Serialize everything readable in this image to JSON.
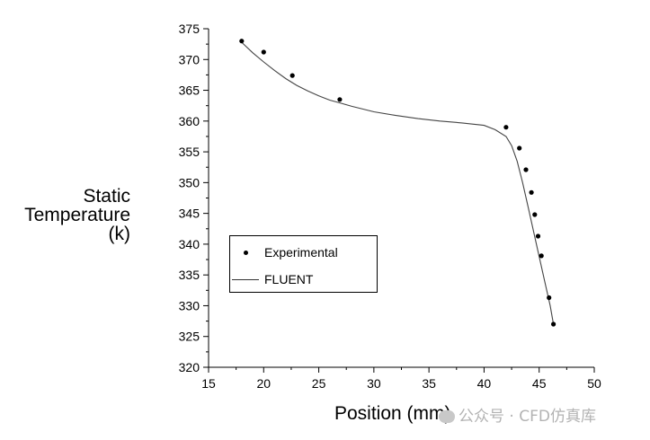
{
  "chart_data": {
    "type": "scatter",
    "xlabel": "Position (mm)",
    "ylabel_lines": [
      "Static",
      "Temperature",
      "(k)"
    ],
    "xlim": [
      15,
      50
    ],
    "ylim": [
      320,
      375
    ],
    "xticks": [
      15,
      20,
      25,
      30,
      35,
      40,
      45,
      50
    ],
    "yticks": [
      320,
      325,
      330,
      335,
      340,
      345,
      350,
      355,
      360,
      365,
      370,
      375
    ],
    "grid": false,
    "legend_position": "lower-left",
    "series": [
      {
        "name": "Experimental",
        "kind": "points",
        "color": "#000000",
        "x": [
          18.0,
          20.0,
          22.6,
          26.9,
          42.0,
          43.2,
          43.8,
          44.3,
          44.6,
          44.9,
          45.2,
          45.9,
          46.3
        ],
        "y": [
          373.0,
          371.2,
          367.4,
          363.5,
          359.0,
          355.6,
          352.1,
          348.4,
          344.8,
          341.3,
          338.1,
          331.3,
          327.0
        ]
      },
      {
        "name": "FLUENT",
        "kind": "line",
        "color": "#444444",
        "x": [
          18.0,
          19.0,
          20.0,
          21.0,
          22.0,
          23.0,
          24.0,
          25.0,
          26.0,
          27.0,
          28.0,
          30.0,
          32.0,
          34.0,
          36.0,
          38.0,
          40.0,
          41.0,
          42.0,
          42.5,
          43.0,
          43.5,
          44.0,
          44.5,
          45.0,
          45.5,
          46.0,
          46.3
        ],
        "y": [
          372.8,
          371.1,
          369.6,
          368.2,
          366.9,
          365.8,
          364.9,
          364.1,
          363.4,
          362.9,
          362.4,
          361.5,
          360.9,
          360.4,
          360.0,
          359.7,
          359.3,
          358.6,
          357.5,
          356.0,
          353.5,
          350.0,
          346.0,
          342.0,
          338.0,
          334.0,
          330.0,
          327.0
        ]
      }
    ]
  },
  "watermark": "公众号 · CFD仿真库"
}
